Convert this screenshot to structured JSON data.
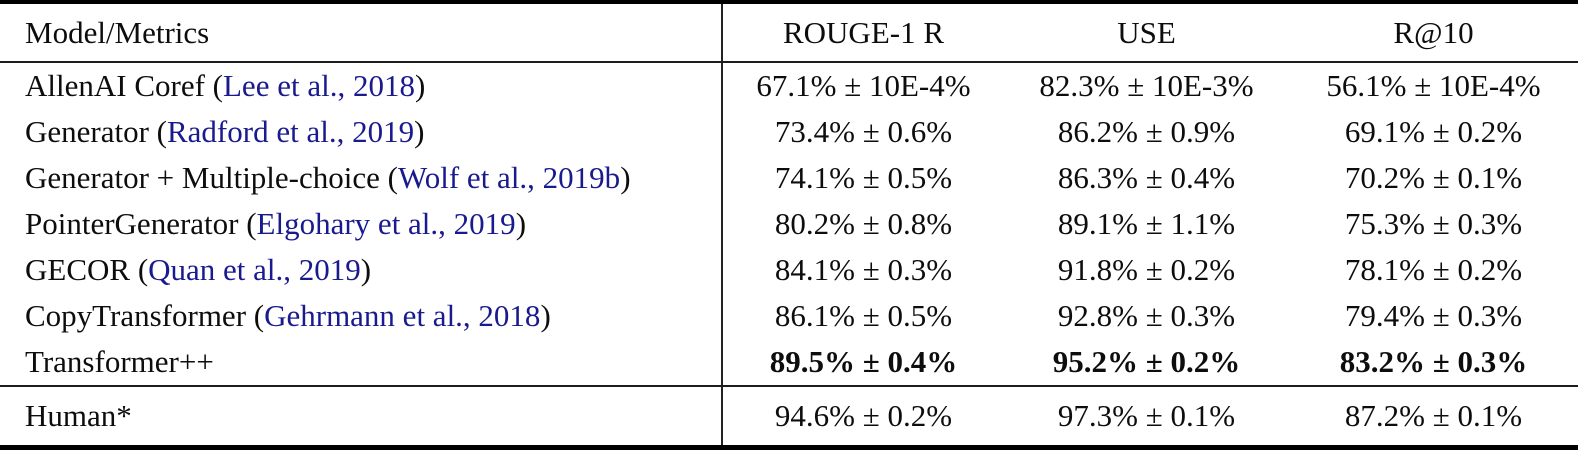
{
  "colors": {
    "citation_blue": "#1a1a8f",
    "text_black": "#0d0d0d",
    "rule_black": "#000000"
  },
  "table": {
    "header": {
      "model_col": "Model/Metrics",
      "metric_cols": [
        "ROUGE-1 R",
        "USE",
        "R@10"
      ]
    },
    "rows": [
      {
        "prefix": "AllenAI Coref (",
        "citation": "Lee et al., 2018",
        "suffix": ")",
        "values": [
          "67.1% ± 10E-4%",
          "82.3% ± 10E-3%",
          "56.1% ± 10E-4%"
        ],
        "bold": false
      },
      {
        "prefix": "Generator (",
        "citation": "Radford et al., 2019",
        "suffix": ")",
        "values": [
          "73.4% ± 0.6%",
          "86.2% ± 0.9%",
          "69.1% ± 0.2%"
        ],
        "bold": false
      },
      {
        "prefix": "Generator + Multiple-choice (",
        "citation": "Wolf et al., 2019b",
        "suffix": ")",
        "values": [
          "74.1% ± 0.5%",
          "86.3% ± 0.4%",
          "70.2% ± 0.1%"
        ],
        "bold": false
      },
      {
        "prefix": "PointerGenerator (",
        "citation": "Elgohary et al., 2019",
        "suffix": ")",
        "values": [
          "80.2% ± 0.8%",
          "89.1% ± 1.1%",
          "75.3% ± 0.3%"
        ],
        "bold": false
      },
      {
        "prefix": "GECOR (",
        "citation": "Quan et al., 2019",
        "suffix": ")",
        "values": [
          "84.1% ± 0.3%",
          "91.8% ± 0.2%",
          "78.1% ± 0.2%"
        ],
        "bold": false
      },
      {
        "prefix": "CopyTransformer (",
        "citation": "Gehrmann et al., 2018",
        "suffix": ")",
        "values": [
          "86.1% ± 0.5%",
          "92.8% ± 0.3%",
          "79.4% ± 0.3%"
        ],
        "bold": false
      },
      {
        "prefix": "Transformer++",
        "citation": "",
        "suffix": "",
        "values": [
          "89.5% ± 0.4%",
          "95.2% ± 0.2%",
          "83.2% ± 0.3%"
        ],
        "bold": true
      }
    ],
    "footer": {
      "label": "Human*",
      "values": [
        "94.6% ± 0.2%",
        "97.3% ± 0.1%",
        "87.2% ± 0.1%"
      ]
    }
  }
}
